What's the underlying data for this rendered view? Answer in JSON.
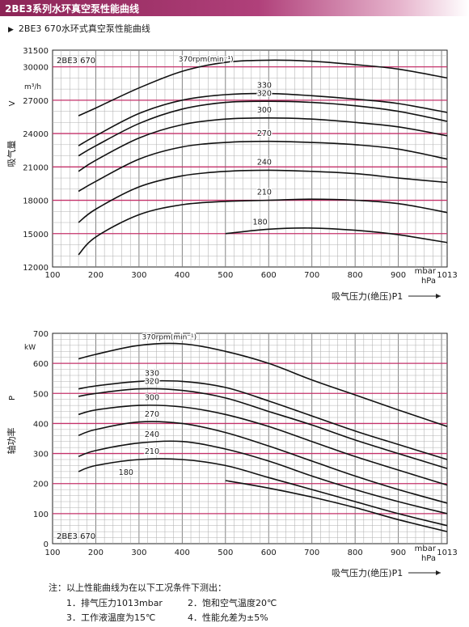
{
  "header": {
    "title": "2BE3系列水环真空泵性能曲线"
  },
  "subtitle": "2BE3 670水环式真空泵性能曲线",
  "chart_data": [
    {
      "type": "line",
      "model_label": "2BE3 670",
      "ylabel": "吸气量",
      "ylabel_symbol": "V",
      "yunit": "m³/h",
      "xlabel": "吸气压力(绝压)P1",
      "xunit_top": "mbar",
      "xunit_bottom": "hPa",
      "xlim": [
        100,
        1013
      ],
      "ylim": [
        12000,
        31500
      ],
      "xticks": [
        "100",
        "200",
        "300",
        "400",
        "500",
        "600",
        "700",
        "800",
        "900",
        "1013"
      ],
      "yticks": [
        "12000",
        "15000",
        "18000",
        "21000",
        "24000",
        "27000",
        "30000",
        "31500"
      ],
      "grid": true,
      "series": [
        {
          "name": "370rpm(min⁻¹)",
          "x": [
            160,
            200,
            300,
            400,
            500,
            600,
            700,
            800,
            900,
            1013
          ],
          "y": [
            25600,
            26300,
            28100,
            29600,
            30400,
            30600,
            30500,
            30200,
            29800,
            29000
          ]
        },
        {
          "name": "330",
          "x": [
            160,
            200,
            300,
            400,
            500,
            600,
            700,
            800,
            900,
            1013
          ],
          "y": [
            22900,
            23800,
            25800,
            27000,
            27500,
            27600,
            27400,
            27100,
            26700,
            25900
          ]
        },
        {
          "name": "320",
          "x": [
            160,
            200,
            300,
            400,
            500,
            600,
            700,
            800,
            900,
            1013
          ],
          "y": [
            22000,
            22900,
            24900,
            26200,
            26800,
            26900,
            26800,
            26500,
            26000,
            25100
          ]
        },
        {
          "name": "300",
          "x": [
            160,
            200,
            300,
            400,
            500,
            600,
            700,
            800,
            900,
            1013
          ],
          "y": [
            20600,
            21600,
            23600,
            24800,
            25300,
            25400,
            25300,
            25000,
            24600,
            23800
          ]
        },
        {
          "name": "270",
          "x": [
            160,
            200,
            300,
            400,
            500,
            600,
            700,
            800,
            900,
            1013
          ],
          "y": [
            18800,
            19700,
            21700,
            22800,
            23200,
            23300,
            23200,
            23000,
            22600,
            21700
          ]
        },
        {
          "name": "240",
          "x": [
            160,
            200,
            300,
            400,
            500,
            600,
            700,
            800,
            900,
            1013
          ],
          "y": [
            16000,
            17200,
            19200,
            20200,
            20600,
            20700,
            20600,
            20400,
            20000,
            19600
          ]
        },
        {
          "name": "210",
          "x": [
            160,
            200,
            300,
            400,
            500,
            600,
            700,
            800,
            900,
            1013
          ],
          "y": [
            13100,
            14700,
            16700,
            17600,
            17900,
            18000,
            18100,
            18000,
            17700,
            16900
          ]
        },
        {
          "name": "180",
          "x": [
            500,
            600,
            700,
            800,
            900,
            1013
          ],
          "y": [
            15000,
            15400,
            15500,
            15300,
            14900,
            14200
          ]
        }
      ]
    },
    {
      "type": "line",
      "model_label": "2BE3 670",
      "ylabel": "轴功率",
      "ylabel_symbol": "P",
      "yunit": "kW",
      "xlabel": "吸气压力(绝压)P1",
      "xunit_top": "mbar",
      "xunit_bottom": "hPa",
      "xlim": [
        100,
        1013
      ],
      "ylim": [
        0,
        700
      ],
      "xticks": [
        "100",
        "200",
        "300",
        "400",
        "500",
        "600",
        "700",
        "800",
        "900",
        "1013"
      ],
      "yticks": [
        "0",
        "100",
        "200",
        "300",
        "400",
        "500",
        "600",
        "700"
      ],
      "grid": true,
      "series": [
        {
          "name": "370rpm(min⁻¹)",
          "x": [
            160,
            200,
            300,
            400,
            500,
            600,
            700,
            800,
            900,
            1013
          ],
          "y": [
            615,
            630,
            660,
            665,
            640,
            600,
            545,
            495,
            445,
            390
          ]
        },
        {
          "name": "330",
          "x": [
            160,
            200,
            300,
            400,
            500,
            600,
            700,
            800,
            900,
            1013
          ],
          "y": [
            515,
            525,
            540,
            540,
            520,
            475,
            425,
            375,
            330,
            280
          ]
        },
        {
          "name": "320",
          "x": [
            160,
            200,
            300,
            400,
            500,
            600,
            700,
            800,
            900,
            1013
          ],
          "y": [
            490,
            500,
            515,
            510,
            485,
            440,
            395,
            345,
            300,
            250
          ]
        },
        {
          "name": "300",
          "x": [
            160,
            200,
            300,
            400,
            500,
            600,
            700,
            800,
            900,
            1013
          ],
          "y": [
            430,
            445,
            460,
            455,
            430,
            390,
            340,
            290,
            245,
            195
          ]
        },
        {
          "name": "270",
          "x": [
            160,
            200,
            300,
            400,
            500,
            600,
            700,
            800,
            900,
            1013
          ],
          "y": [
            360,
            380,
            405,
            400,
            370,
            325,
            275,
            225,
            180,
            135
          ]
        },
        {
          "name": "240",
          "x": [
            160,
            200,
            300,
            400,
            500,
            600,
            700,
            800,
            900,
            1013
          ],
          "y": [
            290,
            310,
            335,
            340,
            315,
            275,
            225,
            180,
            140,
            100
          ]
        },
        {
          "name": "210",
          "x": [
            160,
            200,
            300,
            400,
            500,
            600,
            700,
            800,
            900,
            1013
          ],
          "y": [
            240,
            260,
            280,
            280,
            260,
            220,
            180,
            140,
            100,
            60
          ]
        },
        {
          "name": "180",
          "x": [
            500,
            600,
            700,
            800,
            900,
            1013
          ],
          "y": [
            210,
            185,
            155,
            120,
            80,
            40
          ]
        }
      ]
    }
  ],
  "notes": {
    "title": "注：以上性能曲线为在以下工况条件下测出：",
    "items": [
      "1．排气压力1013mbar",
      "2．饱和空气温度20℃",
      "3．工作液温度为15℃",
      "4．性能允差为±5%"
    ]
  },
  "colors": {
    "header": "#8c2456",
    "gridline_major": "#c4326a",
    "gridline_minor": "#888888",
    "curve": "#111111"
  }
}
